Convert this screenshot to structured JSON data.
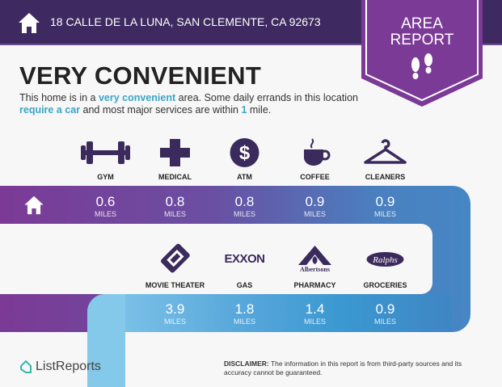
{
  "header": {
    "address": "18 CALLE DE LA LUNA, SAN CLEMENTE, CA 92673",
    "icon": "home-icon"
  },
  "badge": {
    "line1": "AREA",
    "line2": "REPORT",
    "icon": "footprints-icon"
  },
  "title": "VERY CONVENIENT",
  "description": {
    "p1": "This home is in a ",
    "h1": "very convenient",
    "p2": " area. Some daily errands in this location ",
    "h2": "require a car",
    "p3": " and most major services are within ",
    "h3": "1",
    "p4": " mile."
  },
  "row1": [
    {
      "label": "GYM",
      "value": "0.6",
      "unit": "MILES",
      "icon": "dumbbell-icon"
    },
    {
      "label": "MEDICAL",
      "value": "0.8",
      "unit": "MILES",
      "icon": "cross-icon"
    },
    {
      "label": "ATM",
      "value": "0.8",
      "unit": "MILES",
      "icon": "dollar-icon"
    },
    {
      "label": "COFFEE",
      "value": "0.9",
      "unit": "MILES",
      "icon": "coffee-icon"
    },
    {
      "label": "CLEANERS",
      "value": "0.9",
      "unit": "MILES",
      "icon": "hanger-icon"
    }
  ],
  "row2": [
    {
      "label": "MOVIE THEATER",
      "value": "3.9",
      "unit": "MILES",
      "icon": "ticket-icon"
    },
    {
      "label": "GAS",
      "value": "1.8",
      "unit": "MILES",
      "logo": "EXXON"
    },
    {
      "label": "PHARMACY",
      "value": "1.4",
      "unit": "MILES",
      "logo": "Albertsons"
    },
    {
      "label": "GROCERIES",
      "value": "0.9",
      "unit": "MILES",
      "logo": "Ralphs"
    }
  ],
  "footer": {
    "brand": "ListReports",
    "disclaimer_label": "DISCLAIMER:",
    "disclaimer": " The information in this report is from third-party sources and its accuracy cannot be guaranteed."
  },
  "colors": {
    "header": "#3e2a60",
    "ribbon": "#7b3a96",
    "icon": "#3b2a5c",
    "highlight": "#3aa5c6"
  }
}
